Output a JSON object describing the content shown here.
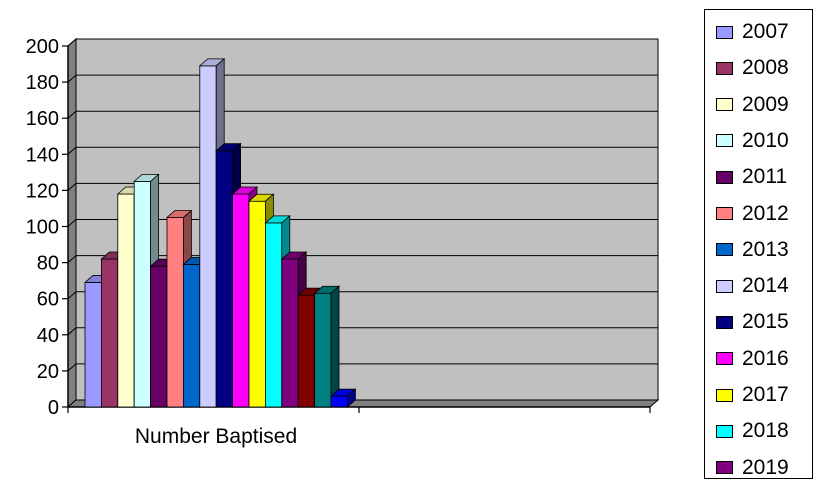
{
  "chart_data": {
    "type": "bar",
    "categories": [
      "Number Baptised"
    ],
    "ylim": [
      0,
      200
    ],
    "yticks": [
      0,
      20,
      40,
      60,
      80,
      100,
      120,
      140,
      160,
      180,
      200
    ],
    "series": [
      {
        "name": "2007",
        "values": [
          69
        ],
        "color": "#9999FF"
      },
      {
        "name": "2008",
        "values": [
          82
        ],
        "color": "#993366"
      },
      {
        "name": "2009",
        "values": [
          118
        ],
        "color": "#FFFFCC"
      },
      {
        "name": "2010",
        "values": [
          125
        ],
        "color": "#CCFFFF"
      },
      {
        "name": "2011",
        "values": [
          78
        ],
        "color": "#660066"
      },
      {
        "name": "2012",
        "values": [
          105
        ],
        "color": "#FF8080"
      },
      {
        "name": "2013",
        "values": [
          79
        ],
        "color": "#0066CC"
      },
      {
        "name": "2014",
        "values": [
          189
        ],
        "color": "#CCCCFF"
      },
      {
        "name": "2015",
        "values": [
          142
        ],
        "color": "#000080"
      },
      {
        "name": "2016",
        "values": [
          118
        ],
        "color": "#FF00FF"
      },
      {
        "name": "2017",
        "values": [
          114
        ],
        "color": "#FFFF00"
      },
      {
        "name": "2018",
        "values": [
          102
        ],
        "color": "#00FFFF"
      },
      {
        "name": "2019",
        "values": [
          82
        ],
        "color": "#800080"
      },
      {
        "name": "",
        "values": [
          62
        ],
        "color": "#800000"
      },
      {
        "name": "",
        "values": [
          63
        ],
        "color": "#008080"
      },
      {
        "name": "",
        "values": [
          6
        ],
        "color": "#0000FF"
      }
    ],
    "grid": true,
    "legend_position": "right",
    "plot_background": "#C0C0C0"
  }
}
